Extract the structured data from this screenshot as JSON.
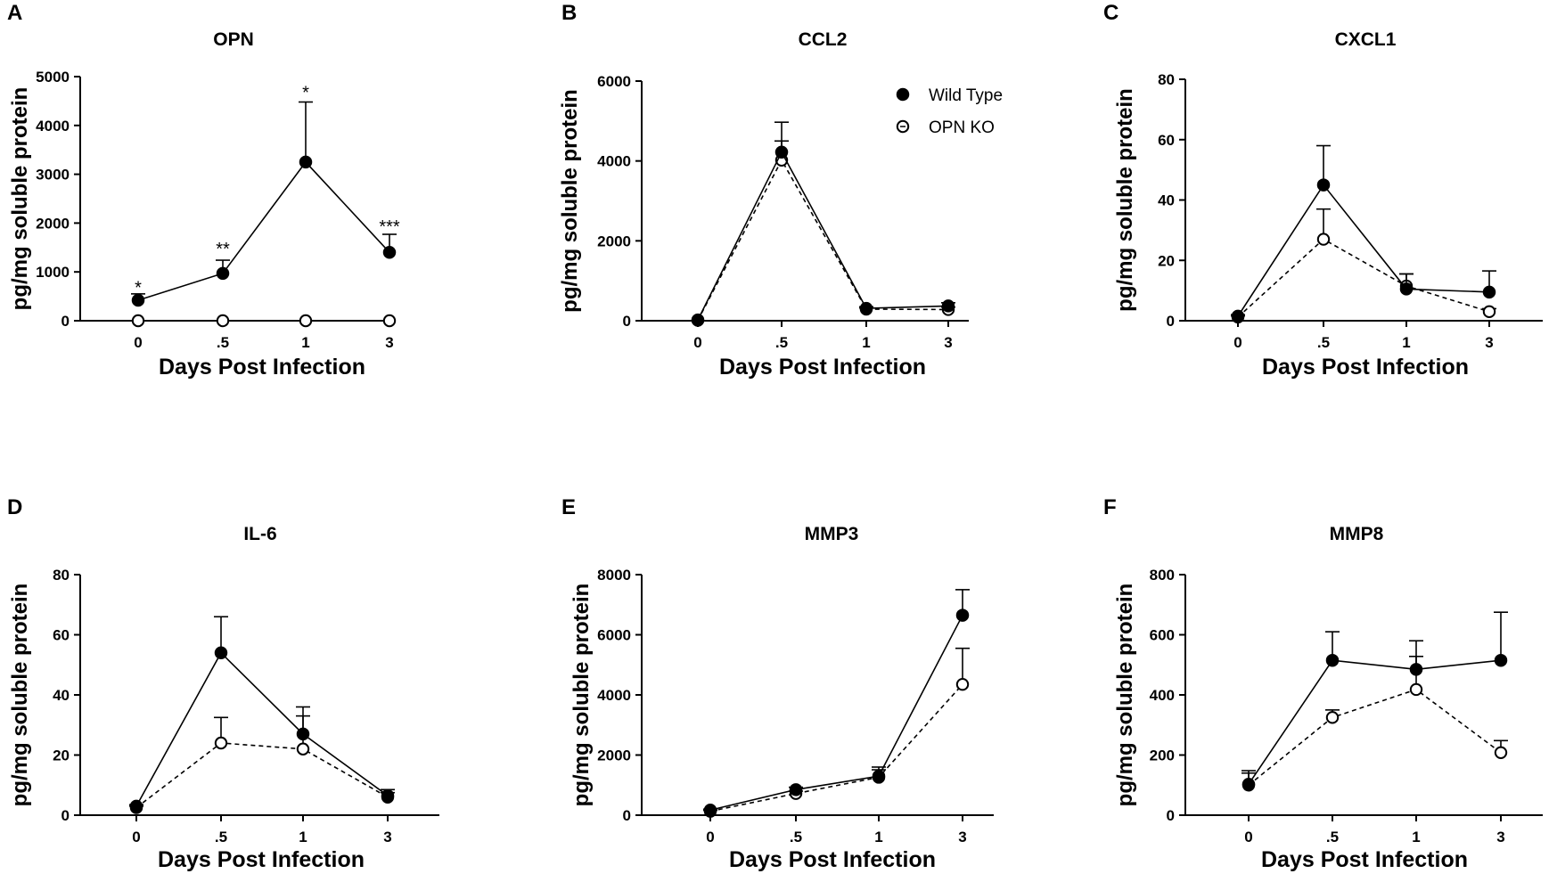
{
  "chart_data": [
    {
      "panel": "A",
      "type": "line",
      "title": "OPN",
      "xlabel": "Days Post Infection",
      "ylabel": "pg/mg soluble protein",
      "categories": [
        "0",
        ".5",
        "1",
        "3"
      ],
      "ylim": [
        0,
        5000
      ],
      "yticks": [
        0,
        1000,
        2000,
        3000,
        4000,
        5000
      ],
      "series": [
        {
          "name": "Wild Type",
          "marker": "filled",
          "dash": false,
          "values": [
            420,
            970,
            3250,
            1400
          ],
          "err": [
            130,
            270,
            1230,
            370
          ]
        },
        {
          "name": "OPN KO",
          "marker": "open",
          "dash": true,
          "values": [
            0,
            0,
            0,
            0
          ],
          "err": [
            0,
            0,
            0,
            0
          ]
        }
      ],
      "annotations": [
        {
          "category": "0",
          "text": "*",
          "y": 700
        },
        {
          "category": ".5",
          "text": "**",
          "y": 1500
        },
        {
          "category": "1",
          "text": "*",
          "y": 4700
        },
        {
          "category": "3",
          "text": "***",
          "y": 1950
        }
      ]
    },
    {
      "panel": "B",
      "type": "line",
      "title": "CCL2",
      "xlabel": "Days Post Infection",
      "ylabel": "pg/mg soluble protein",
      "categories": [
        "0",
        ".5",
        "1",
        "3"
      ],
      "ylim": [
        0,
        6000
      ],
      "yticks": [
        0,
        2000,
        4000,
        6000
      ],
      "legend": {
        "position": "top-right",
        "entries": [
          "Wild Type",
          "OPN KO"
        ]
      },
      "series": [
        {
          "name": "Wild Type",
          "marker": "filled",
          "dash": false,
          "values": [
            20,
            4220,
            310,
            370
          ],
          "err": [
            0,
            750,
            40,
            80
          ]
        },
        {
          "name": "OPN KO",
          "marker": "open",
          "dash": true,
          "values": [
            10,
            4020,
            290,
            280
          ],
          "err": [
            0,
            480,
            30,
            60
          ]
        }
      ]
    },
    {
      "panel": "C",
      "type": "line",
      "title": "CXCL1",
      "xlabel": "Days Post Infection",
      "ylabel": "pg/mg soluble protein",
      "categories": [
        "0",
        ".5",
        "1",
        "3"
      ],
      "ylim": [
        0,
        80
      ],
      "yticks": [
        0,
        20,
        40,
        60,
        80
      ],
      "series": [
        {
          "name": "Wild Type",
          "marker": "filled",
          "dash": false,
          "values": [
            1.5,
            45,
            10.5,
            9.5
          ],
          "err": [
            0.5,
            13,
            5,
            7
          ]
        },
        {
          "name": "OPN KO",
          "marker": "open",
          "dash": true,
          "values": [
            1.2,
            27,
            11.5,
            3
          ],
          "err": [
            0.4,
            10,
            4,
            1
          ]
        }
      ]
    },
    {
      "panel": "D",
      "type": "line",
      "title": "IL-6",
      "xlabel": "Days Post Infection",
      "ylabel": "pg/mg soluble protein",
      "categories": [
        "0",
        ".5",
        "1",
        "3"
      ],
      "ylim": [
        0,
        80
      ],
      "yticks": [
        0,
        20,
        40,
        60,
        80
      ],
      "series": [
        {
          "name": "Wild Type",
          "marker": "filled",
          "dash": false,
          "values": [
            3,
            54,
            27,
            6.5
          ],
          "err": [
            0.5,
            12,
            9,
            2
          ]
        },
        {
          "name": "OPN KO",
          "marker": "open",
          "dash": true,
          "values": [
            2.5,
            24,
            22,
            6
          ],
          "err": [
            0.5,
            8.5,
            11,
            1.5
          ]
        }
      ]
    },
    {
      "panel": "E",
      "type": "line",
      "title": "MMP3",
      "xlabel": "Days Post Infection",
      "ylabel": "pg/mg soluble protein",
      "categories": [
        "0",
        ".5",
        "1",
        "3"
      ],
      "ylim": [
        0,
        8000
      ],
      "yticks": [
        0,
        2000,
        4000,
        6000,
        8000
      ],
      "series": [
        {
          "name": "Wild Type",
          "marker": "filled",
          "dash": false,
          "values": [
            170,
            850,
            1300,
            6650
          ],
          "err": [
            30,
            80,
            300,
            850
          ]
        },
        {
          "name": "OPN KO",
          "marker": "open",
          "dash": true,
          "values": [
            130,
            720,
            1260,
            4350
          ],
          "err": [
            30,
            80,
            250,
            1200
          ]
        }
      ]
    },
    {
      "panel": "F",
      "type": "line",
      "title": "MMP8",
      "xlabel": "Days Post Infection",
      "ylabel": "pg/mg soluble protein",
      "categories": [
        "0",
        ".5",
        "1",
        "3"
      ],
      "ylim": [
        0,
        800
      ],
      "yticks": [
        0,
        200,
        400,
        600,
        800
      ],
      "series": [
        {
          "name": "Wild Type",
          "marker": "filled",
          "dash": false,
          "values": [
            103,
            515,
            485,
            515
          ],
          "err": [
            45,
            95,
            95,
            160
          ]
        },
        {
          "name": "OPN KO",
          "marker": "open",
          "dash": true,
          "values": [
            100,
            325,
            418,
            208
          ],
          "err": [
            40,
            25,
            110,
            40
          ]
        }
      ]
    }
  ]
}
